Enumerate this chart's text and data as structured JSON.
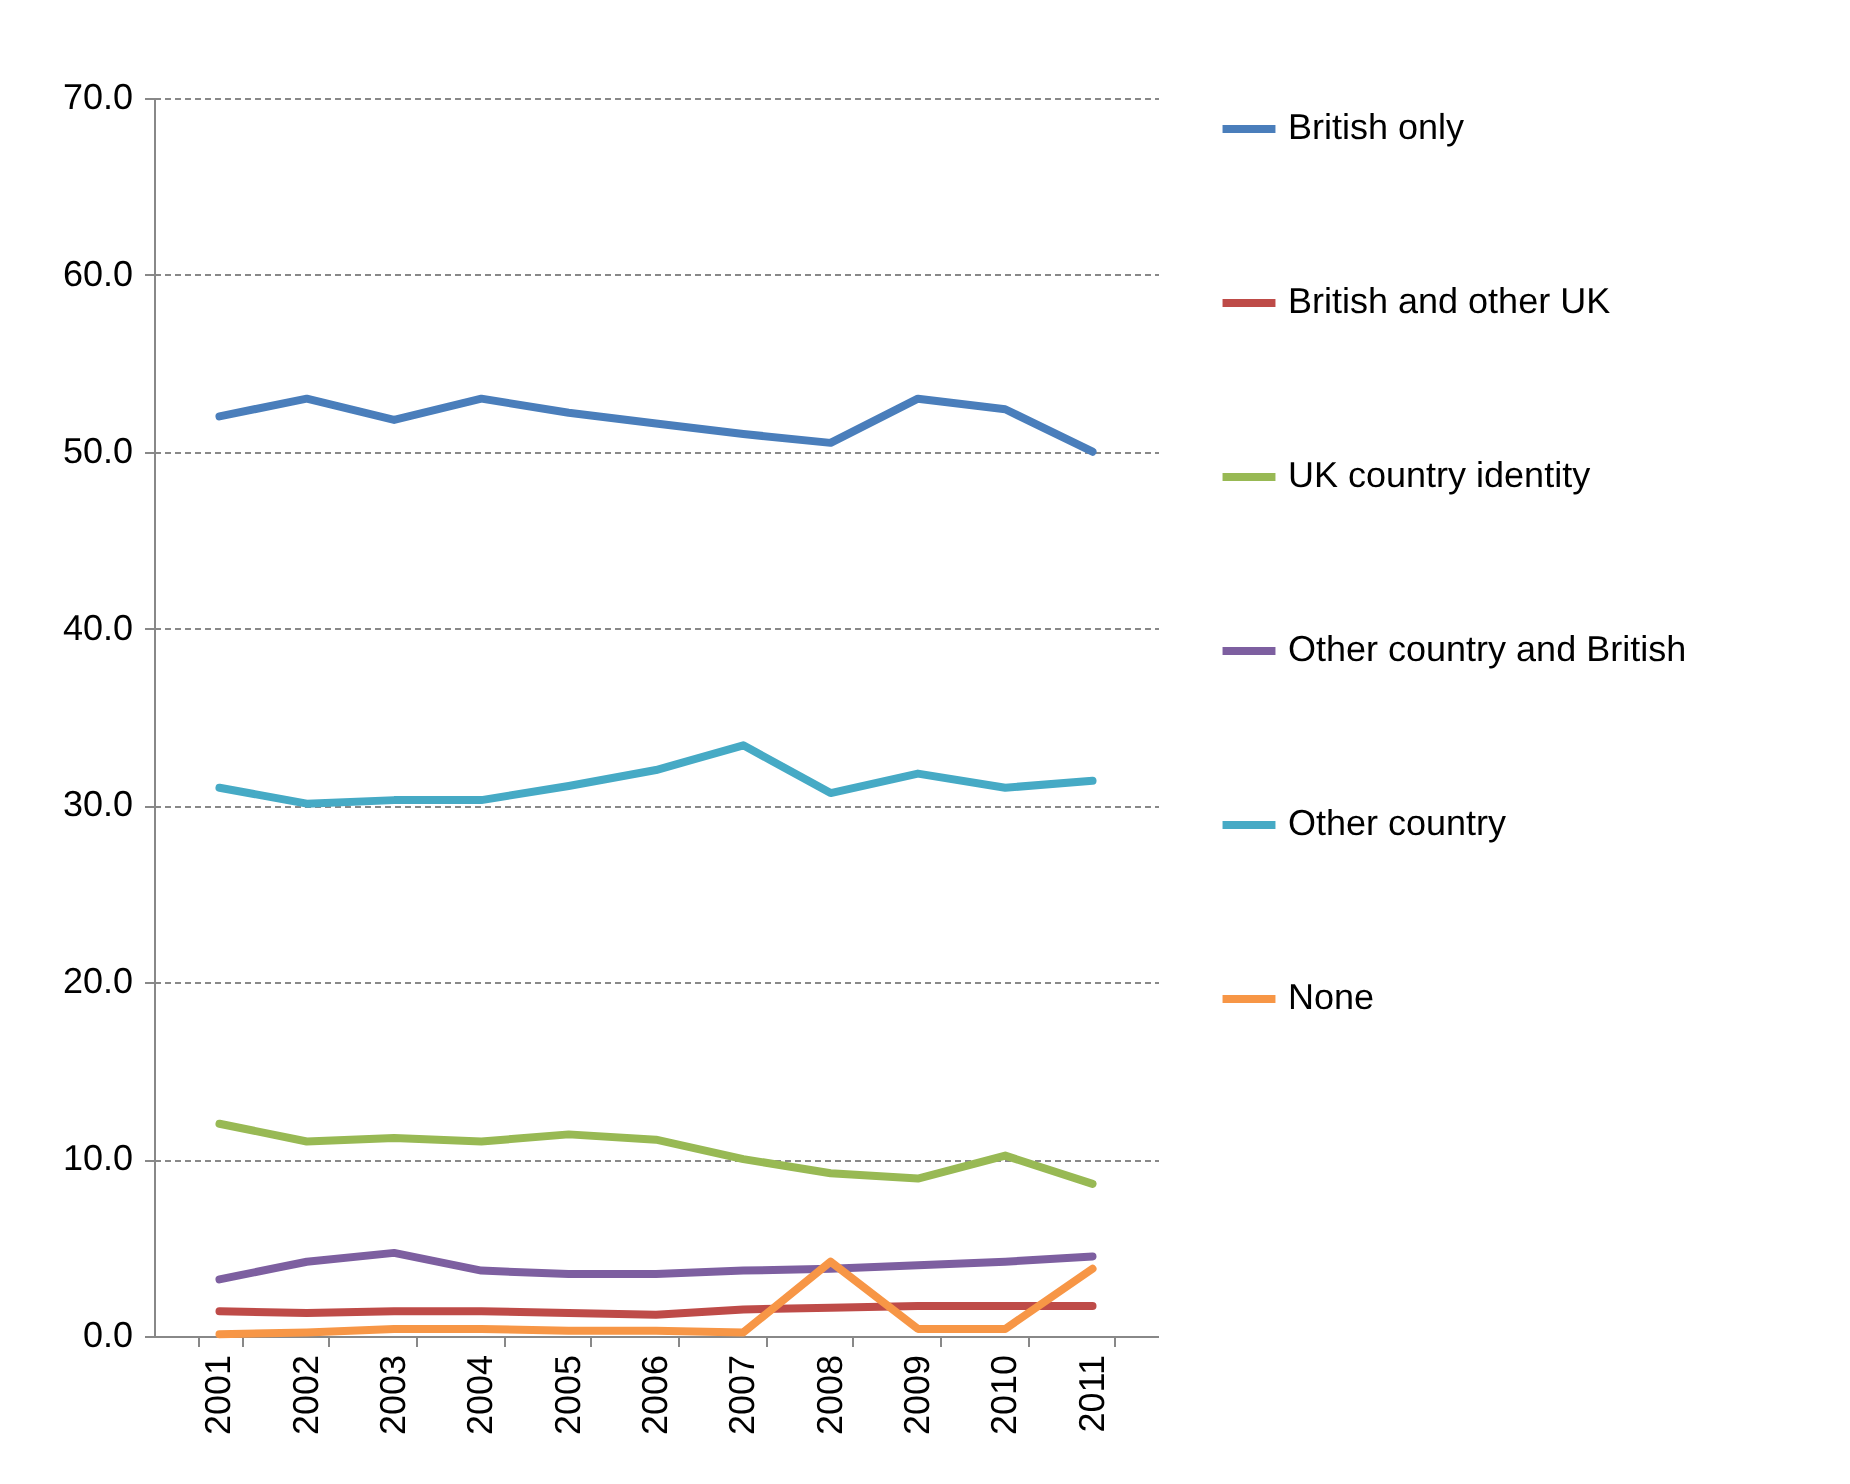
{
  "chart_data": {
    "type": "line",
    "categories": [
      "2001",
      "2002",
      "2003",
      "2004",
      "2005",
      "2006",
      "2007",
      "2008",
      "2009",
      "2010",
      "2011"
    ],
    "ylim": [
      0,
      70
    ],
    "yticks": [
      {
        "value": 0,
        "label": "0.0"
      },
      {
        "value": 10,
        "label": "10.0"
      },
      {
        "value": 20,
        "label": "20.0"
      },
      {
        "value": 30,
        "label": "30.0"
      },
      {
        "value": 40,
        "label": "40.0"
      },
      {
        "value": 50,
        "label": "50.0"
      },
      {
        "value": 60,
        "label": "60.0"
      },
      {
        "value": 70,
        "label": "70.0"
      }
    ],
    "grid": "y",
    "legend": "right",
    "marker": "none",
    "line_style": "solid",
    "series": [
      {
        "name": "British only",
        "color": "#4a7ebb",
        "values": [
          52,
          53,
          51.8,
          53,
          52.2,
          51.6,
          51,
          50.5,
          53,
          52.4,
          50
        ]
      },
      {
        "name": "British and other UK",
        "color": "#be4b48",
        "values": [
          1.4,
          1.3,
          1.4,
          1.4,
          1.3,
          1.2,
          1.5,
          1.6,
          1.7,
          1.7,
          1.7
        ]
      },
      {
        "name": "UK country identity",
        "color": "#98b954",
        "values": [
          12,
          11,
          11.2,
          11,
          11.4,
          11.1,
          10,
          9.2,
          8.9,
          10.2,
          8.6
        ]
      },
      {
        "name": "Other country and British",
        "color": "#7d5fa0",
        "values": [
          3.2,
          4.2,
          4.7,
          3.7,
          3.5,
          3.5,
          3.7,
          3.8,
          4,
          4.2,
          4.5
        ]
      },
      {
        "name": "Other country",
        "color": "#46aac5",
        "values": [
          31,
          30.1,
          30.3,
          30.3,
          31.1,
          32,
          33.4,
          30.7,
          31.8,
          31,
          31.4
        ]
      },
      {
        "name": "None",
        "color": "#f79646",
        "values": [
          0.1,
          0.2,
          0.4,
          0.4,
          0.3,
          0.3,
          0.2,
          4.2,
          0.4,
          0.4,
          3.8
        ]
      }
    ]
  }
}
